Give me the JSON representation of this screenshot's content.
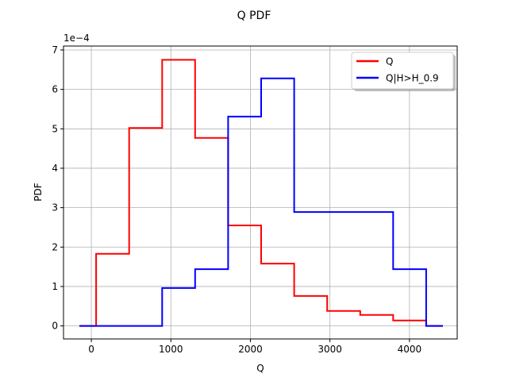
{
  "chart_data": {
    "type": "line",
    "title": "Q PDF",
    "xlabel": "Q",
    "ylabel": "PDF",
    "y_scale_text": "1e−4",
    "xlim": [
      -350,
      4600
    ],
    "ylim": [
      -0.33,
      7.1
    ],
    "x_ticks": [
      0,
      1000,
      2000,
      3000,
      4000
    ],
    "x_tick_labels": [
      "0",
      "1000",
      "2000",
      "3000",
      "4000"
    ],
    "y_ticks": [
      0,
      1,
      2,
      3,
      4,
      5,
      6,
      7
    ],
    "y_tick_labels": [
      "0",
      "1",
      "2",
      "3",
      "4",
      "5",
      "6",
      "7"
    ],
    "grid": true,
    "legend_position": "top-right",
    "series": [
      {
        "name": "Q",
        "color": "#ff0000",
        "edges": [
          -150,
          60,
          475,
          890,
          1305,
          1720,
          2135,
          2550,
          2965,
          3380,
          3795,
          4210,
          4420
        ],
        "values": [
          0,
          1.83,
          5.02,
          6.75,
          4.77,
          2.55,
          1.58,
          0.76,
          0.38,
          0.28,
          0.14,
          0
        ]
      },
      {
        "name": "Q|H>H_0.9",
        "color": "#0000ff",
        "edges": [
          -150,
          890,
          1305,
          1720,
          2135,
          2550,
          2965,
          3380,
          3795,
          4210,
          4420
        ],
        "values": [
          0,
          0.96,
          1.44,
          5.31,
          6.28,
          2.89,
          2.89,
          2.89,
          1.44,
          0
        ]
      }
    ]
  }
}
